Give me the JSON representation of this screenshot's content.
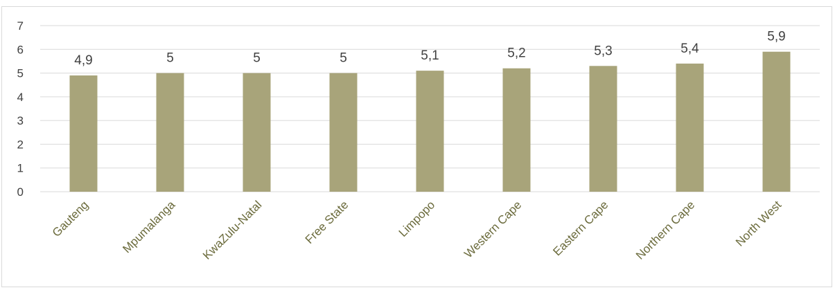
{
  "chart_data": {
    "type": "bar",
    "categories": [
      "Gauteng",
      "Mpumalanga",
      "KwaZulu-Natal",
      "Free State",
      "Limpopo",
      "Western Cape",
      "Eastern Cape",
      "Northern Cape",
      "North West"
    ],
    "values": [
      4.9,
      5,
      5,
      5,
      5.1,
      5.2,
      5.3,
      5.4,
      5.9
    ],
    "data_labels": [
      "4,9",
      "5",
      "5",
      "5",
      "5,1",
      "5,2",
      "5,3",
      "5,4",
      "5,9"
    ],
    "y_ticks": [
      "0",
      "1",
      "2",
      "3",
      "4",
      "5",
      "6",
      "7"
    ],
    "ylim": [
      0,
      7
    ],
    "title": "",
    "xlabel": "",
    "ylabel": "",
    "grid": true,
    "legend": "none",
    "colors": {
      "bar": "#a8a47a",
      "grid": "#d9d9d9",
      "category_text": "#6b6b3c",
      "value_text": "#404040"
    }
  }
}
